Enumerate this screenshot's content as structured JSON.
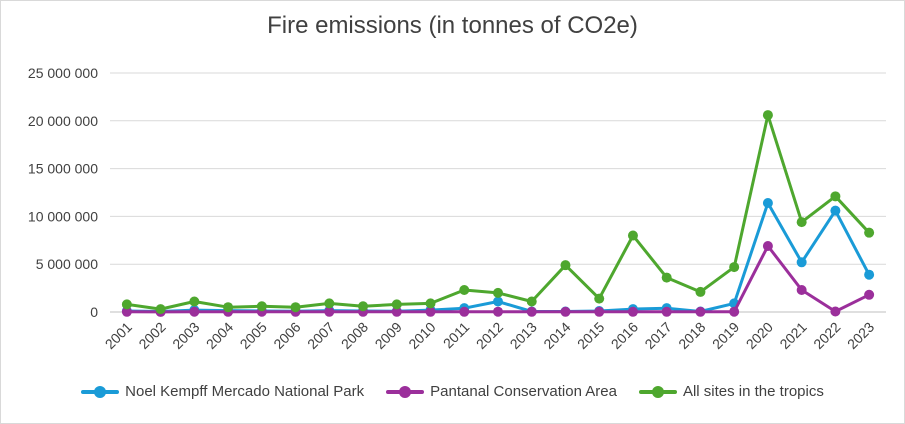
{
  "chart_data": {
    "type": "line",
    "title": "Fire emissions (in tonnes of CO2e)",
    "xlabel": "",
    "ylabel": "",
    "categories": [
      "2001",
      "2002",
      "2003",
      "2004",
      "2005",
      "2006",
      "2007",
      "2008",
      "2009",
      "2010",
      "2011",
      "2012",
      "2013",
      "2014",
      "2015",
      "2016",
      "2017",
      "2018",
      "2019",
      "2020",
      "2021",
      "2022",
      "2023"
    ],
    "ylim": [
      0,
      25000000
    ],
    "yticks": [
      0,
      5000000,
      10000000,
      15000000,
      20000000,
      25000000
    ],
    "ytick_labels": [
      "0",
      "5 000 000",
      "10 000 000",
      "15 000 000",
      "20 000 000",
      "25 000 000"
    ],
    "grid": true,
    "legend_position": "bottom",
    "series": [
      {
        "name": "Noel Kempff Mercado National Park",
        "color": "#1a9bd7",
        "values": [
          100000,
          50000,
          200000,
          150000,
          100000,
          80000,
          150000,
          100000,
          80000,
          200000,
          400000,
          1100000,
          50000,
          50000,
          100000,
          300000,
          400000,
          50000,
          900000,
          11400000,
          5200000,
          10600000,
          3900000
        ]
      },
      {
        "name": "Pantanal Conservation Area",
        "color": "#9b2f9b",
        "values": [
          20000,
          10000,
          30000,
          20000,
          30000,
          20000,
          20000,
          20000,
          20000,
          20000,
          20000,
          30000,
          20000,
          20000,
          20000,
          20000,
          20000,
          20000,
          30000,
          6900000,
          2300000,
          50000,
          1800000
        ]
      },
      {
        "name": "All sites in the tropics",
        "color": "#4ea72e",
        "values": [
          800000,
          300000,
          1100000,
          500000,
          600000,
          500000,
          900000,
          600000,
          800000,
          900000,
          2300000,
          2000000,
          1100000,
          4900000,
          1400000,
          8000000,
          3600000,
          2100000,
          4700000,
          20600000,
          9400000,
          12100000,
          8300000
        ]
      }
    ]
  }
}
